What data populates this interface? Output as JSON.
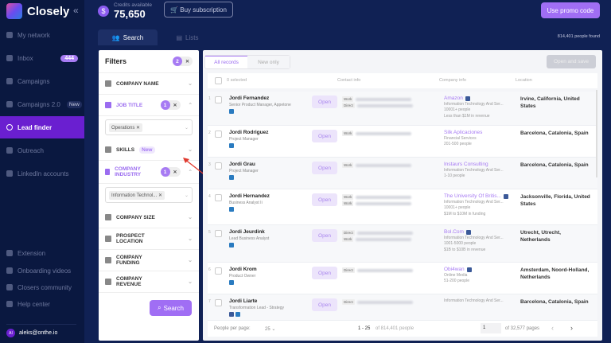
{
  "app": {
    "name": "Closely"
  },
  "sidebar": {
    "items": [
      {
        "label": "My network",
        "icon": "network-icon"
      },
      {
        "label": "Inbox",
        "icon": "send-icon",
        "badge": "444"
      },
      {
        "label": "Campaigns",
        "icon": "megaphone-icon"
      },
      {
        "label": "Campaigns 2.0",
        "icon": "megaphone-icon",
        "badge": "New"
      },
      {
        "label": "Lead finder",
        "icon": "search-icon",
        "active": true
      },
      {
        "label": "Outreach",
        "icon": "mail-icon"
      },
      {
        "label": "LinkedIn accounts",
        "icon": "linkedin-icon"
      }
    ],
    "bottom": [
      {
        "label": "Extension"
      },
      {
        "label": "Onboarding videos"
      },
      {
        "label": "Closers community"
      },
      {
        "label": "Help center"
      }
    ],
    "user": {
      "initials": "AI",
      "email": "aleks@onthe.io"
    }
  },
  "header": {
    "credits_label": "Credits available",
    "credits": "75,650",
    "buy": "Buy subscription",
    "promo": "Use promo code",
    "found": "814,401 people found"
  },
  "tabs": [
    {
      "label": "Search"
    },
    {
      "label": "Lists"
    }
  ],
  "filters": {
    "title": "Filters",
    "count": "2",
    "search": "Search",
    "items": [
      {
        "label": "COMPANY NAME"
      },
      {
        "label": "JOB TITLE",
        "count": "1",
        "chip": "Operations"
      },
      {
        "label": "SKILLS",
        "badge": "New"
      },
      {
        "label": "COMPANY INDUSTRY",
        "count": "1",
        "chip": "Information Technol..."
      },
      {
        "label": "COMPANY SIZE"
      },
      {
        "label": "PROSPECT LOCATION"
      },
      {
        "label": "COMPANY FUNDING"
      },
      {
        "label": "COMPANY REVENUE"
      }
    ]
  },
  "results": {
    "tabs": [
      "All records",
      "New only"
    ],
    "open_save": "Open and save",
    "headers": {
      "selected": "0 selected",
      "contact": "Contact info",
      "company": "Company info",
      "location": "Location"
    },
    "open_label": "Open",
    "rows": [
      {
        "n": "1",
        "name": "Jordi Fernandez",
        "title": "Senior Product Manager, Appetone",
        "contacts": [
          "Work",
          "Direct"
        ],
        "company": "Amazon",
        "fb": true,
        "lines": [
          "Information Technology And Ser...",
          "10001+ people",
          "Less than $1M in revenue"
        ],
        "location": "Irvine, California, United States"
      },
      {
        "n": "2",
        "name": "Jordi Rodriguez",
        "title": "Project Manager",
        "contacts": [
          "Work"
        ],
        "company": "Silk Aplicaciones",
        "lines": [
          "Financial Services",
          "201-500 people"
        ],
        "location": "Barcelona, Catalonia, Spain"
      },
      {
        "n": "3",
        "name": "Jordi Grau",
        "title": "Project Manager",
        "contacts": [
          "Work"
        ],
        "company": "Instaurs Consulting",
        "lines": [
          "Information Technology And Ser...",
          "1-10 people"
        ],
        "location": "Barcelona, Catalonia, Spain"
      },
      {
        "n": "4",
        "name": "Jordi Hernandez",
        "title": "Business Analyst Ii",
        "contacts": [
          "Work",
          "Work"
        ],
        "company": "The University Of Britis...",
        "fb": true,
        "lines": [
          "Information Technology And Ser...",
          "10001+ people",
          "$1M to $10M in funding"
        ],
        "location": "Jacksonville, Florida, United States"
      },
      {
        "n": "5",
        "name": "Jordi Jeurdink",
        "title": "Lead Business Analyst",
        "contacts": [
          "Direct",
          "Work"
        ],
        "company": "Bol.Com",
        "fb": true,
        "lines": [
          "Information Technology And Ser...",
          "1001-5000 people",
          "$1B to $10B in revenue"
        ],
        "location": "Utrecht, Utrecht, Netherlands"
      },
      {
        "n": "6",
        "name": "Jordi Krom",
        "title": "Product Owner",
        "contacts": [
          "Direct"
        ],
        "company": "Obi4wan",
        "fb": true,
        "lines": [
          "Online Media",
          "51-200 people"
        ],
        "location": "Amsterdam, Noord-Holland, Netherlands"
      },
      {
        "n": "7",
        "name": "Jordi Liarte",
        "title": "Transformation Lead - Strategy",
        "contacts": [
          "Direct"
        ],
        "company": "",
        "lines": [
          "Information Technology And Ser..."
        ],
        "location": "Barcelona, Catalonia, Spain",
        "personal_fb": true
      }
    ],
    "footer": {
      "per_page_label": "People per page:",
      "per_page": "25",
      "range": "1 - 25",
      "of_total": "of 814,401 people",
      "page": "1",
      "of_pages": "of 32,577 pages"
    }
  },
  "colors": {
    "sidebar": "#0a1840",
    "accent": "#a06ef4",
    "active": "#6a1fd0"
  }
}
